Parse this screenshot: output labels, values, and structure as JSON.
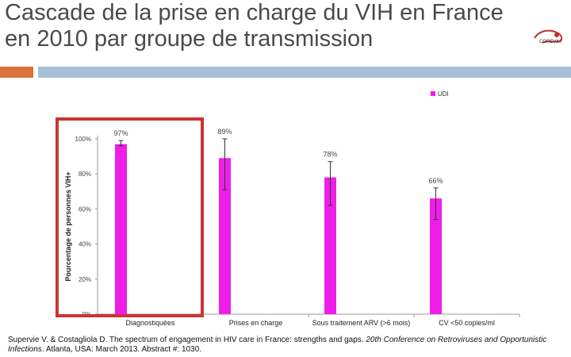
{
  "slide": {
    "title": "Cascade de la prise en charge du VIH en France en 2010 par groupe de transmission",
    "logo_text": "COREVIH",
    "citation": {
      "authors_part": "Supervie V. & Costagliola D. The spectrum of engagement in HIV care in France: strengths and gaps. ",
      "conference": "20th Conference on Retroviruses and Opportunistic Infections",
      "tail": ". Atlanta, USA: March 2013. Abstract #: 1030."
    }
  },
  "colors": {
    "bar": "#ee1ee8",
    "highlight_box": "#cc3333",
    "accent_orange": "#d9733b",
    "accent_blue": "#a7bfd8"
  },
  "chart_data": {
    "type": "bar",
    "title": "",
    "legend": [
      {
        "name": "UDI",
        "position": "top-right"
      }
    ],
    "xlabel": "",
    "ylabel": "Pourcentage de personnes VIH+",
    "ylim": [
      0,
      100
    ],
    "yticks": [
      0,
      20,
      40,
      60,
      80,
      100
    ],
    "ytick_labels": [
      "0%",
      "20%",
      "40%",
      "60%",
      "80%",
      "100%"
    ],
    "categories": [
      "Diagnostiquées",
      "Prises en charge",
      "Sous traitement ARV (>6 mois)",
      "CV <50 copies/ml"
    ],
    "series": [
      {
        "name": "UDI",
        "values": [
          97,
          89,
          78,
          66
        ],
        "labels": [
          "97%",
          "89%",
          "78%",
          "66%"
        ],
        "error_low": [
          96,
          71,
          62,
          54
        ],
        "error_high": [
          99,
          100,
          87,
          72
        ]
      }
    ],
    "highlight": "Diagnostiquées"
  }
}
